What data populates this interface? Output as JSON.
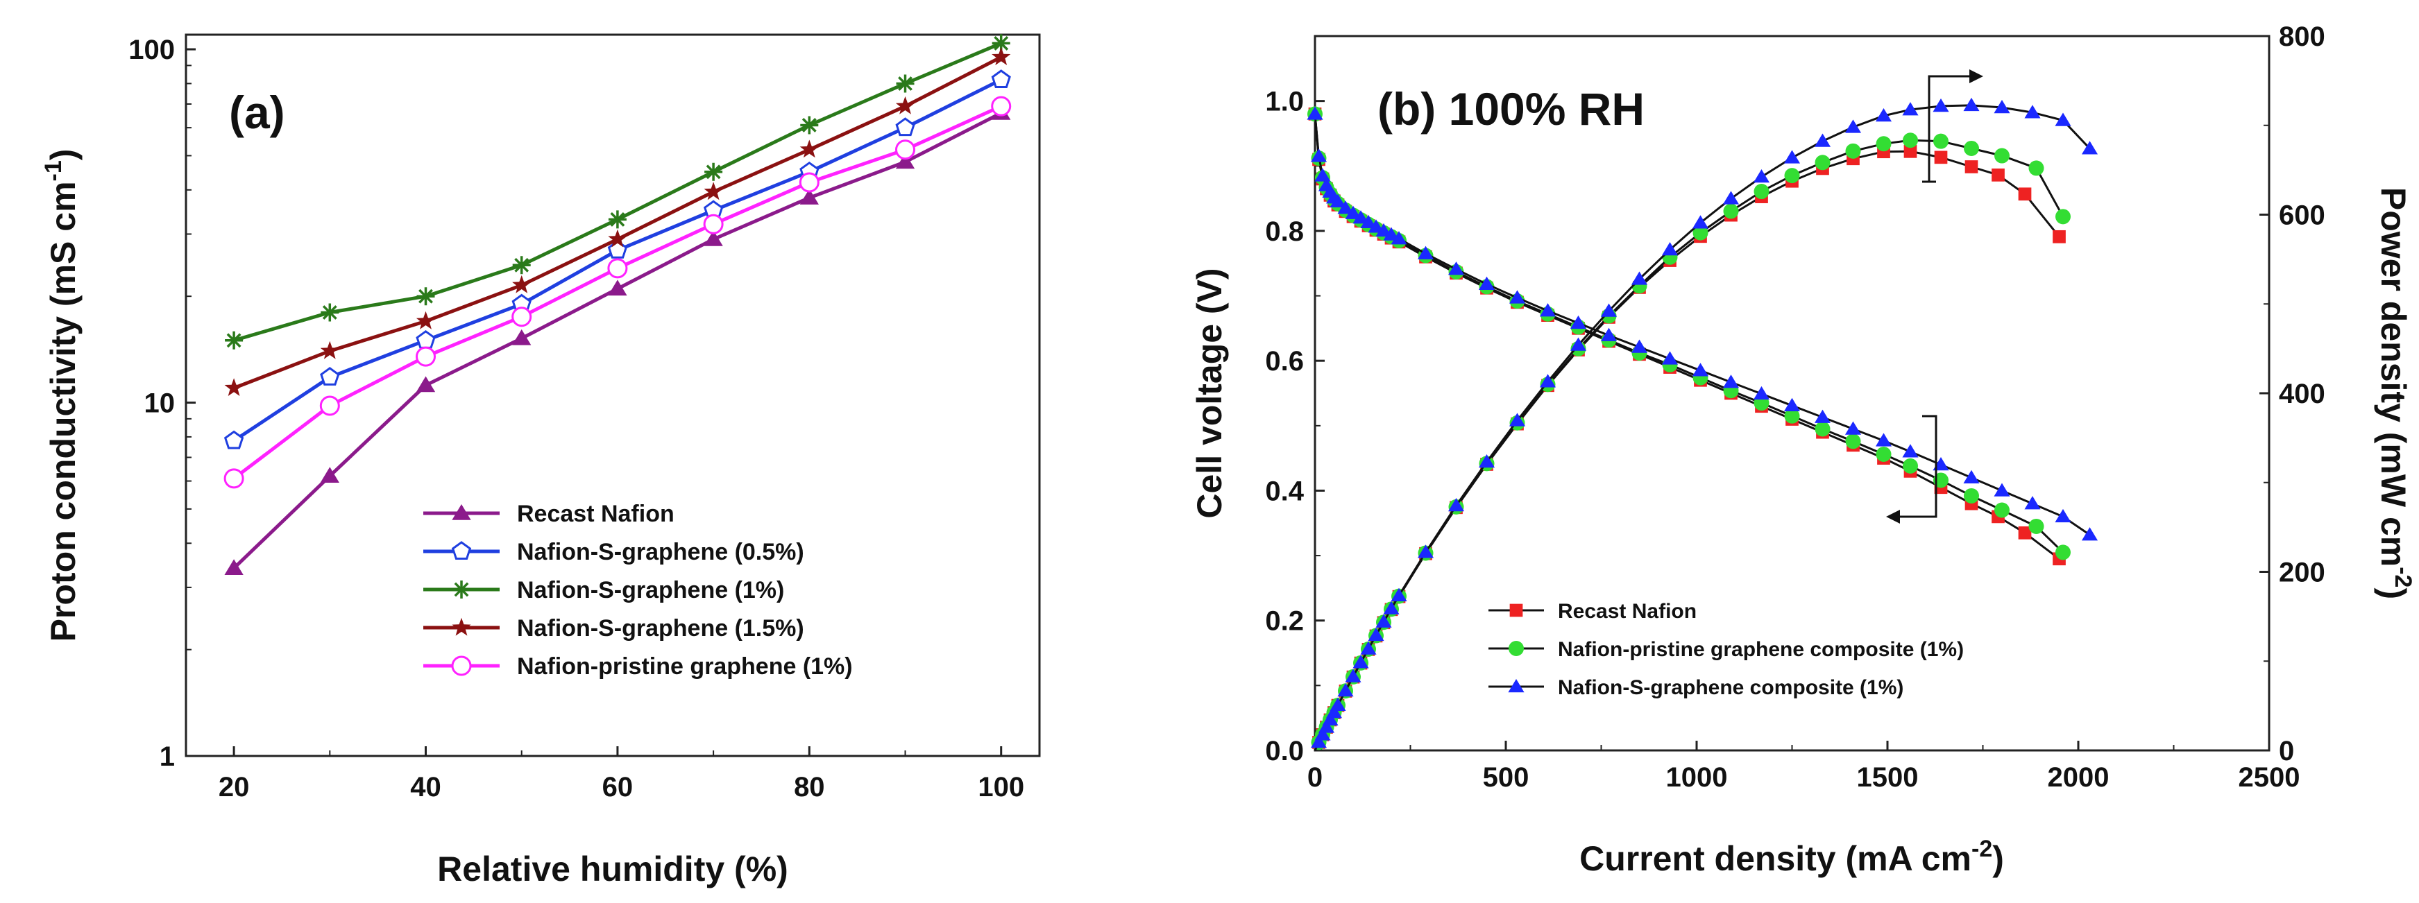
{
  "chart_data": [
    {
      "type": "line",
      "panel_label": "(a)",
      "xlabel": "Relative humidity (%)",
      "ylabel": "Proton conductivity (mS cm",
      "ylabel_sup": "-1",
      "ylabel_close": ")",
      "x": [
        20,
        30,
        40,
        50,
        60,
        70,
        80,
        90,
        100
      ],
      "xlim": [
        15,
        104
      ],
      "ylim": [
        1,
        110
      ],
      "yscale": "log",
      "xticks": [
        "20",
        "40",
        "60",
        "80",
        "100"
      ],
      "yticks": [
        "1",
        "10",
        "100"
      ],
      "legend_position": "bottom-right",
      "series": [
        {
          "name": "Recast Nafion",
          "color": "#8b1a8b",
          "marker": "triangle",
          "values": [
            3.4,
            6.2,
            11.2,
            15.2,
            21,
            29,
            38,
            48,
            66
          ]
        },
        {
          "name": "Nafion-S-graphene (0.5%)",
          "color": "#1f3fe0",
          "marker": "pentagon",
          "values": [
            7.8,
            11.8,
            15,
            19,
            27,
            35,
            45,
            60,
            82
          ]
        },
        {
          "name": "Nafion-S-graphene (1%)",
          "color": "#2a7a1a",
          "marker": "star-x",
          "values": [
            15,
            18,
            20,
            24.5,
            33,
            45,
            61,
            80,
            104
          ]
        },
        {
          "name": "Nafion-S-graphene (1.5%)",
          "color": "#8b1111",
          "marker": "star",
          "values": [
            11,
            14,
            17,
            21.5,
            29,
            39.5,
            52,
            69,
            95
          ]
        },
        {
          "name": "Nafion-pristine graphene (1%)",
          "color": "#ff22ff",
          "marker": "circle",
          "values": [
            6.1,
            9.8,
            13.5,
            17.5,
            24,
            32,
            42,
            52,
            69
          ]
        }
      ]
    },
    {
      "type": "line",
      "panel_label": "(b) 100% RH",
      "xlabel": "Current density (mA cm",
      "xlabel_sup": "-2",
      "xlabel_close": ")",
      "ylabel": "Cell voltage (V)",
      "y2label": "Power density (mW cm",
      "y2label_sup": "-2",
      "y2label_close": ")",
      "xlim": [
        0,
        2500
      ],
      "ylim": [
        0,
        1.1
      ],
      "y2lim": [
        0,
        800
      ],
      "xticks": [
        "0",
        "500",
        "1000",
        "1500",
        "2000",
        "2500"
      ],
      "yticks": [
        "0.0",
        "0.2",
        "0.4",
        "0.6",
        "0.8",
        "1.0"
      ],
      "y2ticks": [
        "0",
        "200",
        "400",
        "600",
        "800"
      ],
      "legend_position": "bottom-left",
      "series": [
        {
          "name": "Recast Nafion",
          "color": "#ee2222",
          "marker": "square",
          "x": [
            0,
            10,
            20,
            30,
            40,
            50,
            60,
            80,
            100,
            120,
            140,
            160,
            180,
            200,
            220,
            290,
            370,
            450,
            530,
            610,
            690,
            770,
            850,
            930,
            1010,
            1090,
            1170,
            1250,
            1330,
            1410,
            1490,
            1560,
            1640,
            1720,
            1790,
            1860,
            1950
          ],
          "voltage": [
            0.98,
            0.91,
            0.88,
            0.865,
            0.855,
            0.846,
            0.84,
            0.83,
            0.822,
            0.815,
            0.808,
            0.801,
            0.795,
            0.789,
            0.783,
            0.76,
            0.735,
            0.712,
            0.69,
            0.67,
            0.65,
            0.63,
            0.61,
            0.59,
            0.57,
            0.55,
            0.53,
            0.51,
            0.49,
            0.47,
            0.45,
            0.43,
            0.405,
            0.38,
            0.36,
            0.335,
            0.295
          ],
          "power": [
            0,
            9,
            17.6,
            26,
            34.2,
            42.3,
            50.4,
            66.4,
            82.2,
            97.8,
            113.1,
            128.2,
            143.1,
            157.8,
            172.3,
            220.4,
            272,
            320.4,
            365.7,
            408.7,
            448.5,
            485.1,
            518.5,
            548.7,
            575.7,
            599.5,
            620.1,
            637.5,
            651.7,
            662.7,
            670.5,
            670.8,
            664.2,
            653.6,
            644.4,
            623.1,
            575.3
          ]
        },
        {
          "name": "Nafion-pristine graphene composite (1%)",
          "color": "#33dd33",
          "marker": "circle",
          "x": [
            0,
            10,
            20,
            30,
            40,
            50,
            60,
            80,
            100,
            120,
            140,
            160,
            180,
            200,
            220,
            290,
            370,
            450,
            530,
            610,
            690,
            770,
            850,
            930,
            1010,
            1090,
            1170,
            1250,
            1330,
            1410,
            1490,
            1560,
            1640,
            1720,
            1800,
            1890,
            1960
          ],
          "voltage": [
            0.98,
            0.912,
            0.882,
            0.867,
            0.857,
            0.848,
            0.842,
            0.832,
            0.824,
            0.817,
            0.81,
            0.803,
            0.797,
            0.791,
            0.785,
            0.762,
            0.737,
            0.714,
            0.692,
            0.672,
            0.652,
            0.632,
            0.612,
            0.594,
            0.574,
            0.554,
            0.535,
            0.515,
            0.495,
            0.476,
            0.456,
            0.438,
            0.416,
            0.392,
            0.37,
            0.345,
            0.305
          ],
          "power": [
            0,
            9.1,
            17.6,
            26,
            34.3,
            42.4,
            50.5,
            66.6,
            82.4,
            98,
            113.4,
            128.5,
            143.5,
            158.2,
            172.7,
            221,
            272.7,
            321.3,
            366.8,
            409.9,
            449.9,
            486.6,
            520.2,
            552.4,
            579.7,
            603.9,
            626,
            643.8,
            658.4,
            671.2,
            679.4,
            683.3,
            682.2,
            674.2,
            666,
            652.1,
            597.8
          ]
        },
        {
          "name": "Nafion-S-graphene composite (1%)",
          "color": "#1a28ff",
          "marker": "triangle",
          "x": [
            0,
            10,
            20,
            30,
            40,
            50,
            60,
            80,
            100,
            120,
            140,
            160,
            180,
            200,
            220,
            290,
            370,
            450,
            530,
            610,
            690,
            770,
            850,
            930,
            1010,
            1090,
            1170,
            1250,
            1330,
            1410,
            1490,
            1560,
            1640,
            1720,
            1800,
            1880,
            1960,
            2030
          ],
          "voltage": [
            0.98,
            0.915,
            0.885,
            0.87,
            0.86,
            0.851,
            0.845,
            0.835,
            0.827,
            0.82,
            0.813,
            0.806,
            0.8,
            0.794,
            0.788,
            0.765,
            0.741,
            0.718,
            0.697,
            0.677,
            0.658,
            0.639,
            0.621,
            0.603,
            0.585,
            0.567,
            0.549,
            0.531,
            0.513,
            0.495,
            0.477,
            0.46,
            0.44,
            0.42,
            0.4,
            0.38,
            0.36,
            0.332
          ],
          "power": [
            0,
            9.2,
            17.7,
            26.1,
            34.4,
            42.6,
            50.7,
            66.8,
            82.7,
            98.4,
            113.8,
            129,
            144,
            158.8,
            173.4,
            221.9,
            274.2,
            323.1,
            369.4,
            413,
            454,
            492,
            527.9,
            560.8,
            590.9,
            618,
            642.3,
            663.8,
            682.3,
            698,
            710.7,
            717.6,
            721.6,
            722.4,
            720,
            714.4,
            705.6,
            674
          ]
        }
      ]
    }
  ]
}
